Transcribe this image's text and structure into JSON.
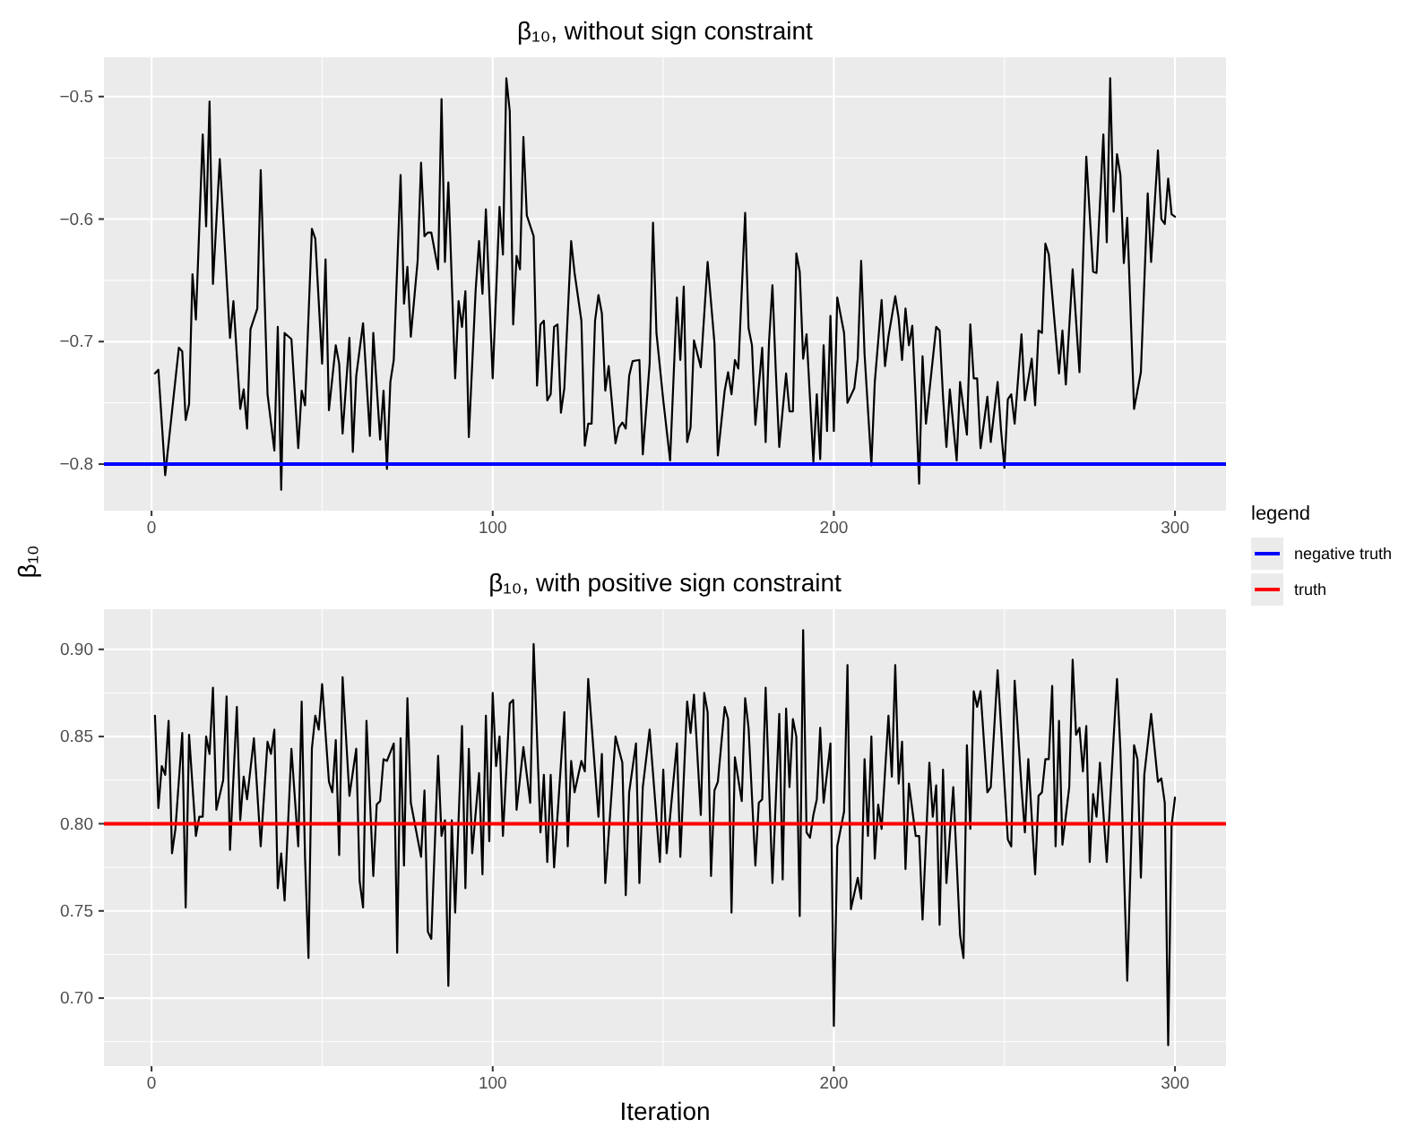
{
  "chart_data": [
    {
      "type": "line",
      "title": "β₁₀, without sign constraint",
      "ylabel": "β₁₀",
      "legend_title": "legend",
      "legend": "right",
      "grid": true,
      "xlim": [
        -13.95,
        314.95
      ],
      "xticks": [
        0,
        100,
        200,
        300
      ],
      "ylim": [
        -0.838,
        -0.468
      ],
      "yticks": [
        -0.8,
        -0.7,
        -0.6,
        -0.5
      ],
      "ref_lines": [
        {
          "axis": "y",
          "value": -0.8,
          "label": "negative truth",
          "color": "#0000ff"
        }
      ],
      "series": [
        {
          "color": "#000000",
          "x": [
            1,
            2,
            4,
            8,
            9,
            10,
            11,
            12,
            13,
            15,
            16,
            17,
            18,
            20,
            23,
            24,
            26,
            27,
            28,
            29,
            31,
            32,
            34,
            36,
            37,
            38,
            39,
            41,
            43,
            44,
            45,
            47,
            48,
            50,
            51,
            52,
            54,
            55,
            56,
            58,
            59,
            60,
            62,
            64,
            65,
            67,
            68,
            69,
            70,
            71,
            73,
            74,
            75,
            76,
            78,
            79,
            80,
            81,
            82,
            84,
            85,
            86,
            87,
            89,
            90,
            91,
            92,
            93,
            95,
            96,
            97,
            98,
            100,
            102,
            103,
            104,
            105,
            106,
            107,
            108,
            109,
            110,
            112,
            113,
            114,
            115,
            116,
            117,
            118,
            119,
            120,
            121,
            123,
            124,
            126,
            127,
            128,
            129,
            130,
            131,
            132,
            133,
            134,
            136,
            137,
            138,
            139,
            140,
            141,
            143,
            144,
            146,
            147,
            148,
            150,
            152,
            154,
            155,
            156,
            157,
            158,
            159,
            161,
            163,
            165,
            166,
            168,
            169,
            170,
            171,
            172,
            174,
            175,
            176,
            177,
            179,
            180,
            181,
            182,
            183,
            184,
            186,
            187,
            188,
            189,
            190,
            191,
            192,
            194,
            195,
            196,
            197,
            198,
            199,
            200,
            201,
            203,
            204,
            206,
            207,
            208,
            209,
            211,
            212,
            214,
            215,
            216,
            218,
            219,
            220,
            221,
            222,
            223,
            224,
            225,
            226,
            227,
            230,
            231,
            232,
            233,
            234,
            236,
            237,
            239,
            240,
            241,
            242,
            243,
            245,
            246,
            248,
            249,
            250,
            251,
            252,
            253,
            255,
            256,
            258,
            259,
            260,
            261,
            262,
            263,
            266,
            267,
            268,
            270,
            272,
            274,
            276,
            277,
            279,
            280,
            281,
            282,
            283,
            284,
            285,
            286,
            288,
            290,
            292,
            293,
            295,
            296,
            297,
            298,
            299,
            300
          ],
          "values": [
            -0.726,
            -0.723,
            -0.809,
            -0.705,
            -0.708,
            -0.764,
            -0.751,
            -0.645,
            -0.682,
            -0.531,
            -0.606,
            -0.504,
            -0.653,
            -0.551,
            -0.697,
            -0.667,
            -0.755,
            -0.739,
            -0.771,
            -0.69,
            -0.673,
            -0.56,
            -0.743,
            -0.789,
            -0.688,
            -0.821,
            -0.693,
            -0.698,
            -0.787,
            -0.74,
            -0.752,
            -0.608,
            -0.616,
            -0.718,
            -0.633,
            -0.756,
            -0.703,
            -0.718,
            -0.775,
            -0.697,
            -0.79,
            -0.728,
            -0.685,
            -0.777,
            -0.693,
            -0.78,
            -0.74,
            -0.804,
            -0.733,
            -0.715,
            -0.564,
            -0.669,
            -0.639,
            -0.696,
            -0.634,
            -0.554,
            -0.614,
            -0.611,
            -0.611,
            -0.641,
            -0.502,
            -0.635,
            -0.57,
            -0.73,
            -0.667,
            -0.688,
            -0.659,
            -0.778,
            -0.658,
            -0.618,
            -0.661,
            -0.592,
            -0.73,
            -0.59,
            -0.629,
            -0.485,
            -0.512,
            -0.686,
            -0.63,
            -0.641,
            -0.533,
            -0.597,
            -0.614,
            -0.736,
            -0.686,
            -0.683,
            -0.748,
            -0.743,
            -0.688,
            -0.686,
            -0.758,
            -0.738,
            -0.618,
            -0.644,
            -0.683,
            -0.785,
            -0.767,
            -0.767,
            -0.683,
            -0.662,
            -0.677,
            -0.74,
            -0.72,
            -0.783,
            -0.77,
            -0.766,
            -0.771,
            -0.728,
            -0.716,
            -0.715,
            -0.792,
            -0.718,
            -0.603,
            -0.693,
            -0.748,
            -0.797,
            -0.664,
            -0.715,
            -0.655,
            -0.782,
            -0.77,
            -0.699,
            -0.721,
            -0.635,
            -0.701,
            -0.793,
            -0.74,
            -0.725,
            -0.743,
            -0.715,
            -0.722,
            -0.595,
            -0.689,
            -0.703,
            -0.768,
            -0.705,
            -0.782,
            -0.7,
            -0.654,
            -0.725,
            -0.786,
            -0.726,
            -0.757,
            -0.757,
            -0.628,
            -0.643,
            -0.714,
            -0.694,
            -0.798,
            -0.743,
            -0.796,
            -0.703,
            -0.773,
            -0.679,
            -0.773,
            -0.664,
            -0.693,
            -0.75,
            -0.738,
            -0.714,
            -0.634,
            -0.71,
            -0.801,
            -0.733,
            -0.666,
            -0.72,
            -0.696,
            -0.663,
            -0.681,
            -0.715,
            -0.673,
            -0.703,
            -0.687,
            -0.748,
            -0.816,
            -0.712,
            -0.767,
            -0.688,
            -0.691,
            -0.745,
            -0.786,
            -0.739,
            -0.797,
            -0.733,
            -0.776,
            -0.686,
            -0.73,
            -0.73,
            -0.787,
            -0.745,
            -0.782,
            -0.733,
            -0.772,
            -0.803,
            -0.747,
            -0.743,
            -0.767,
            -0.694,
            -0.748,
            -0.714,
            -0.752,
            -0.691,
            -0.693,
            -0.62,
            -0.629,
            -0.726,
            -0.691,
            -0.735,
            -0.641,
            -0.725,
            -0.549,
            -0.643,
            -0.644,
            -0.531,
            -0.619,
            -0.485,
            -0.594,
            -0.547,
            -0.564,
            -0.636,
            -0.599,
            -0.755,
            -0.725,
            -0.579,
            -0.635,
            -0.544,
            -0.6,
            -0.604,
            -0.567,
            -0.596,
            -0.598
          ]
        }
      ]
    },
    {
      "type": "line",
      "title": "β₁₀, with positive sign constraint",
      "xlabel": "Iteration",
      "grid": true,
      "xlim": [
        -13.95,
        314.95
      ],
      "xticks": [
        0,
        100,
        200,
        300
      ],
      "ylim": [
        0.661,
        0.923
      ],
      "yticks": [
        {
          "value": 0.7,
          "label": "0.70"
        },
        {
          "value": 0.75,
          "label": "0.75"
        },
        {
          "value": 0.8,
          "label": "0.80"
        },
        {
          "value": 0.85,
          "label": "0.85"
        },
        {
          "value": 0.9,
          "label": "0.90"
        }
      ],
      "ref_lines": [
        {
          "axis": "y",
          "value": 0.8,
          "label": "truth",
          "color": "#ff0000"
        }
      ],
      "series": [
        {
          "color": "#000000",
          "x": [
            1,
            2,
            3,
            4,
            5,
            6,
            7,
            9,
            10,
            11,
            13,
            14,
            15,
            16,
            17,
            18,
            19,
            21,
            22,
            23,
            25,
            26,
            27,
            28,
            30,
            32,
            34,
            35,
            36,
            37,
            38,
            39,
            41,
            43,
            44,
            45,
            46,
            47,
            48,
            49,
            50,
            52,
            53,
            54,
            55,
            56,
            58,
            60,
            61,
            62,
            63,
            65,
            66,
            67,
            68,
            69,
            71,
            72,
            73,
            74,
            75,
            76,
            79,
            80,
            81,
            82,
            84,
            85,
            86,
            87,
            88,
            89,
            91,
            92,
            93,
            94,
            96,
            97,
            98,
            99,
            100,
            101,
            102,
            103,
            105,
            106,
            107,
            109,
            111,
            112,
            114,
            115,
            116,
            117,
            118,
            121,
            122,
            123,
            124,
            126,
            127,
            128,
            131,
            132,
            133,
            136,
            138,
            139,
            140,
            142,
            143,
            144,
            146,
            149,
            150,
            151,
            154,
            155,
            157,
            158,
            159,
            161,
            162,
            163,
            164,
            165,
            166,
            168,
            169,
            170,
            171,
            173,
            174,
            175,
            177,
            178,
            179,
            180,
            182,
            184,
            185,
            186,
            187,
            188,
            189,
            190,
            191,
            192,
            193,
            194,
            195,
            196,
            197,
            199,
            200,
            201,
            203,
            204,
            205,
            207,
            208,
            209,
            210,
            211,
            212,
            213,
            214,
            216,
            217,
            218,
            219,
            220,
            221,
            222,
            224,
            225,
            226,
            228,
            229,
            230,
            231,
            232,
            233,
            235,
            237,
            238,
            239,
            240,
            241,
            242,
            243,
            245,
            246,
            248,
            251,
            252,
            253,
            255,
            256,
            257,
            259,
            260,
            261,
            262,
            263,
            264,
            265,
            266,
            267,
            269,
            270,
            271,
            272,
            273,
            274,
            275,
            276,
            277,
            278,
            280,
            282,
            283,
            284,
            286,
            288,
            289,
            290,
            291,
            293,
            295,
            296,
            297,
            298,
            299,
            300
          ],
          "values": [
            0.862,
            0.809,
            0.833,
            0.828,
            0.859,
            0.783,
            0.797,
            0.852,
            0.752,
            0.851,
            0.793,
            0.804,
            0.804,
            0.85,
            0.84,
            0.878,
            0.808,
            0.825,
            0.873,
            0.785,
            0.867,
            0.802,
            0.827,
            0.814,
            0.849,
            0.787,
            0.847,
            0.84,
            0.854,
            0.763,
            0.783,
            0.756,
            0.843,
            0.787,
            0.87,
            0.78,
            0.723,
            0.843,
            0.862,
            0.854,
            0.88,
            0.824,
            0.818,
            0.848,
            0.782,
            0.884,
            0.816,
            0.843,
            0.767,
            0.752,
            0.859,
            0.77,
            0.811,
            0.813,
            0.837,
            0.836,
            0.846,
            0.726,
            0.849,
            0.776,
            0.872,
            0.812,
            0.781,
            0.819,
            0.738,
            0.734,
            0.839,
            0.793,
            0.802,
            0.707,
            0.802,
            0.749,
            0.856,
            0.763,
            0.843,
            0.783,
            0.829,
            0.771,
            0.862,
            0.79,
            0.875,
            0.833,
            0.85,
            0.793,
            0.869,
            0.871,
            0.808,
            0.844,
            0.812,
            0.903,
            0.795,
            0.828,
            0.778,
            0.828,
            0.775,
            0.864,
            0.787,
            0.836,
            0.818,
            0.836,
            0.83,
            0.883,
            0.804,
            0.84,
            0.766,
            0.85,
            0.835,
            0.759,
            0.818,
            0.846,
            0.766,
            0.821,
            0.854,
            0.778,
            0.831,
            0.783,
            0.846,
            0.781,
            0.87,
            0.852,
            0.874,
            0.805,
            0.875,
            0.864,
            0.77,
            0.819,
            0.824,
            0.867,
            0.86,
            0.749,
            0.838,
            0.813,
            0.872,
            0.855,
            0.776,
            0.812,
            0.814,
            0.878,
            0.766,
            0.863,
            0.768,
            0.866,
            0.821,
            0.86,
            0.85,
            0.747,
            0.911,
            0.795,
            0.792,
            0.805,
            0.814,
            0.855,
            0.812,
            0.846,
            0.684,
            0.787,
            0.807,
            0.891,
            0.751,
            0.769,
            0.757,
            0.837,
            0.793,
            0.85,
            0.78,
            0.811,
            0.797,
            0.862,
            0.827,
            0.891,
            0.823,
            0.847,
            0.774,
            0.823,
            0.793,
            0.793,
            0.745,
            0.835,
            0.804,
            0.822,
            0.742,
            0.831,
            0.766,
            0.821,
            0.736,
            0.723,
            0.845,
            0.797,
            0.876,
            0.867,
            0.876,
            0.818,
            0.821,
            0.888,
            0.791,
            0.787,
            0.882,
            0.821,
            0.795,
            0.837,
            0.771,
            0.816,
            0.818,
            0.837,
            0.837,
            0.879,
            0.787,
            0.859,
            0.788,
            0.821,
            0.894,
            0.851,
            0.855,
            0.83,
            0.856,
            0.778,
            0.817,
            0.804,
            0.835,
            0.778,
            0.849,
            0.883,
            0.842,
            0.71,
            0.845,
            0.837,
            0.769,
            0.828,
            0.863,
            0.824,
            0.826,
            0.812,
            0.673,
            0.799,
            0.815
          ]
        }
      ]
    }
  ]
}
